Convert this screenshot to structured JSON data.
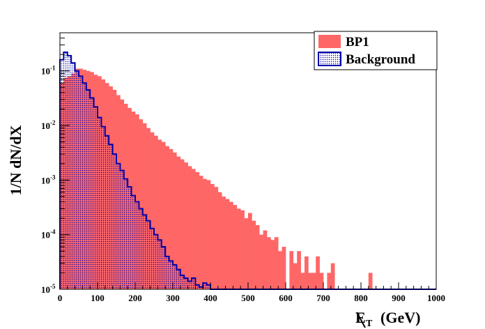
{
  "chart_data": {
    "type": "histogram",
    "xlabel_main": "E",
    "xlabel_sub": "T",
    "xlabel_unit": "(GeV)",
    "ylabel": "1/N dN/dX",
    "y_scale": "log",
    "xlim": [
      0,
      1000
    ],
    "ylim": [
      1e-05,
      0.5
    ],
    "bin_width": 10,
    "x_ticks": [
      "0",
      "100",
      "200",
      "300",
      "400",
      "500",
      "600",
      "700",
      "800",
      "900",
      "1000"
    ],
    "y_ticks": [
      {
        "mant": "10",
        "exp": "-1",
        "v": 0.1
      },
      {
        "mant": "10",
        "exp": "-2",
        "v": 0.01
      },
      {
        "mant": "10",
        "exp": "-3",
        "v": 0.001
      },
      {
        "mant": "10",
        "exp": "-4",
        "v": 0.0001
      },
      {
        "mant": "10",
        "exp": "-5",
        "v": 1e-05
      }
    ],
    "legend_position": "top-right",
    "series": [
      {
        "name": "BP1",
        "style": "filled",
        "color": "#ff6666",
        "values": [
          0.06,
          0.075,
          0.08,
          0.09,
          0.11,
          0.11,
          0.105,
          0.1,
          0.095,
          0.085,
          0.08,
          0.07,
          0.06,
          0.052,
          0.045,
          0.036,
          0.03,
          0.025,
          0.021,
          0.018,
          0.016,
          0.013,
          0.011,
          0.009,
          0.0075,
          0.0065,
          0.0055,
          0.005,
          0.0042,
          0.0037,
          0.0032,
          0.0027,
          0.0024,
          0.0021,
          0.0018,
          0.0016,
          0.0014,
          0.0012,
          0.00105,
          0.001,
          0.00085,
          0.00075,
          0.0006,
          0.0005,
          0.00045,
          0.0004,
          0.00035,
          0.0003,
          0.00028,
          0.0002,
          0.00025,
          0.00018,
          0.00015,
          0.0001,
          0.00012,
          9e-05,
          8e-05,
          9e-05,
          5e-05,
          6e-05,
          0.0,
          5e-05,
          3e-05,
          5e-05,
          2e-05,
          4e-05,
          2e-05,
          2e-05,
          4e-05,
          2e-05,
          0.0,
          2e-05,
          3e-05,
          0.0,
          0.0,
          0.0,
          0.0,
          0.0,
          0.0,
          0.0,
          0.0,
          0.0,
          2e-05,
          0.0,
          0.0,
          0.0,
          0.0,
          0.0,
          0.0,
          0.0,
          0.0,
          0.0,
          0.0,
          0.0,
          0.0,
          0.0,
          0.0,
          0.0,
          0.0,
          0.0
        ]
      },
      {
        "name": "Background",
        "style": "hatched-outline",
        "color": "#0000aa",
        "values": [
          0.16,
          0.22,
          0.19,
          0.14,
          0.1,
          0.08,
          0.06,
          0.045,
          0.032,
          0.022,
          0.014,
          0.0095,
          0.0065,
          0.0045,
          0.003,
          0.002,
          0.0015,
          0.00105,
          0.00075,
          0.00052,
          0.0004,
          0.0003,
          0.00023,
          0.00018,
          0.00013,
          0.0001,
          8e-05,
          6e-05,
          4e-05,
          3.3e-05,
          2.8e-05,
          2.3e-05,
          1.8e-05,
          1.6e-05,
          1.4e-05,
          1.6e-05,
          1.2e-05,
          1.1e-05,
          1.3e-05,
          1.2e-05,
          1e-05,
          0.0,
          0.0,
          0.0,
          0.0,
          0.0,
          0.0,
          0.0,
          0.0,
          0.0,
          0.0,
          0.0,
          0.0,
          0.0,
          0.0,
          0.0,
          0.0,
          0.0,
          0.0,
          0.0,
          0.0,
          0.0,
          0.0,
          0.0,
          0.0,
          0.0,
          0.0,
          0.0,
          0.0,
          0.0,
          0.0,
          0.0,
          0.0,
          0.0,
          0.0,
          0.0,
          0.0,
          0.0,
          0.0,
          0.0,
          0.0,
          0.0,
          0.0,
          0.0,
          0.0,
          0.0,
          0.0,
          0.0,
          0.0,
          0.0,
          0.0,
          0.0,
          0.0,
          0.0,
          0.0,
          0.0,
          0.0,
          0.0,
          0.0,
          0.0
        ]
      }
    ]
  }
}
